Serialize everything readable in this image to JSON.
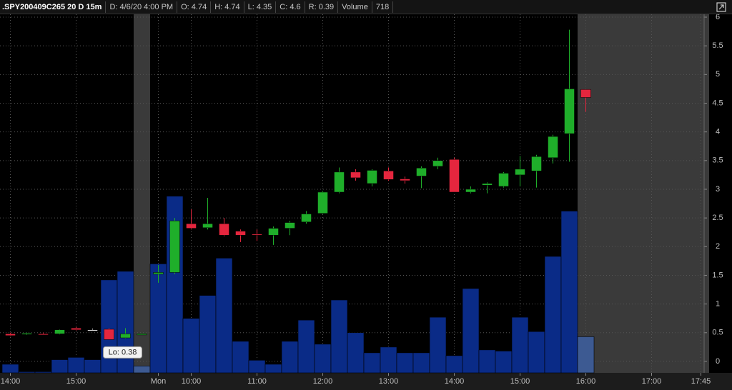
{
  "header": {
    "symbol": ".SPY200409C265 20 D 15m",
    "date": "D: 4/6/20 4:00 PM",
    "open": "O: 4.74",
    "high": "H: 4.74",
    "low": "L: 4.35",
    "close": "C: 4.6",
    "range": "R: 0.39",
    "volume_label": "Volume",
    "volume": "718"
  },
  "chart_data": {
    "type": "candlestick",
    "categories": [
      "14:00",
      null,
      null,
      null,
      "15:00",
      null,
      null,
      null,
      null,
      "Mon",
      null,
      "10:00",
      null,
      null,
      null,
      "11:00",
      null,
      null,
      null,
      "12:00",
      null,
      null,
      null,
      "13:00",
      null,
      null,
      null,
      "14:00",
      null,
      null,
      null,
      "15:00",
      null,
      null,
      null,
      "16:00",
      null,
      null,
      null,
      "17:00",
      null,
      null,
      "17:45"
    ],
    "open": [
      0.48,
      0.47,
      0.48,
      0.48,
      0.58,
      0.55,
      0.56,
      0.41,
      0.47,
      1.52,
      1.55,
      2.4,
      2.33,
      2.4,
      2.27,
      2.22,
      2.2,
      2.32,
      2.43,
      2.58,
      2.95,
      3.3,
      3.1,
      3.32,
      3.18,
      3.23,
      3.4,
      3.52,
      2.95,
      3.07,
      3.05,
      3.25,
      3.32,
      3.55,
      3.97,
      4.74,
      null,
      null,
      null,
      null,
      null,
      null,
      null
    ],
    "high": [
      0.5,
      0.5,
      0.5,
      0.56,
      0.6,
      0.57,
      0.58,
      0.58,
      0.49,
      1.68,
      2.5,
      2.65,
      2.85,
      2.5,
      2.3,
      2.3,
      2.35,
      2.45,
      2.62,
      2.97,
      3.38,
      3.35,
      3.35,
      3.38,
      3.22,
      3.4,
      3.55,
      3.55,
      3.05,
      3.12,
      3.3,
      3.58,
      3.6,
      3.95,
      5.78,
      4.74,
      null,
      null,
      null,
      null,
      null,
      null,
      null
    ],
    "low": [
      0.44,
      0.46,
      0.46,
      0.47,
      0.54,
      0.53,
      0.38,
      0.4,
      0.46,
      1.37,
      1.52,
      2.3,
      2.3,
      2.18,
      2.08,
      2.1,
      2.03,
      2.2,
      2.4,
      2.57,
      2.93,
      3.15,
      3.05,
      3.15,
      3.1,
      3.02,
      3.35,
      2.95,
      2.93,
      2.93,
      3.03,
      3.05,
      3.03,
      3.45,
      3.48,
      4.35,
      null,
      null,
      null,
      null,
      null,
      null,
      null
    ],
    "close": [
      0.45,
      0.49,
      0.47,
      0.55,
      0.55,
      0.55,
      0.38,
      0.48,
      0.48,
      1.55,
      2.45,
      2.32,
      2.4,
      2.2,
      2.2,
      2.21,
      2.32,
      2.42,
      2.57,
      2.95,
      3.3,
      3.2,
      3.33,
      3.17,
      3.15,
      3.37,
      3.5,
      2.95,
      3.0,
      3.1,
      3.28,
      3.35,
      3.57,
      3.92,
      4.75,
      4.6,
      null,
      null,
      null,
      null,
      null,
      null,
      null
    ],
    "volume": [
      -0.05,
      -0.18,
      -0.18,
      0.03,
      0.07,
      0.03,
      1.42,
      1.57,
      -0.08,
      1.7,
      2.88,
      0.75,
      1.15,
      1.8,
      0.35,
      0.02,
      -0.05,
      0.35,
      0.72,
      0.3,
      1.07,
      0.5,
      0.15,
      0.25,
      0.15,
      0.15,
      0.77,
      0.1,
      1.27,
      0.2,
      0.18,
      0.77,
      0.52,
      1.83,
      2.62,
      0.43,
      null,
      null,
      null,
      null,
      null,
      null,
      null
    ],
    "up_color": "#1fae2a",
    "down_color": "#e5263e",
    "neutral_color": "#dddddd",
    "volume_color": "#0a2b87",
    "shaded_volume_color": "#3d5a92",
    "shade_color": "#3a3a3a",
    "shaded_ranges": [
      [
        8,
        8
      ],
      [
        35,
        42
      ]
    ],
    "annotation": {
      "text": "Lo: 0.38",
      "at": 6
    },
    "ylim": [
      -0.2,
      6.05
    ],
    "yticks": [
      0,
      0.5,
      1,
      1.5,
      2,
      2.5,
      3,
      3.5,
      4,
      4.5,
      5,
      5.5,
      6
    ],
    "grid": true
  }
}
